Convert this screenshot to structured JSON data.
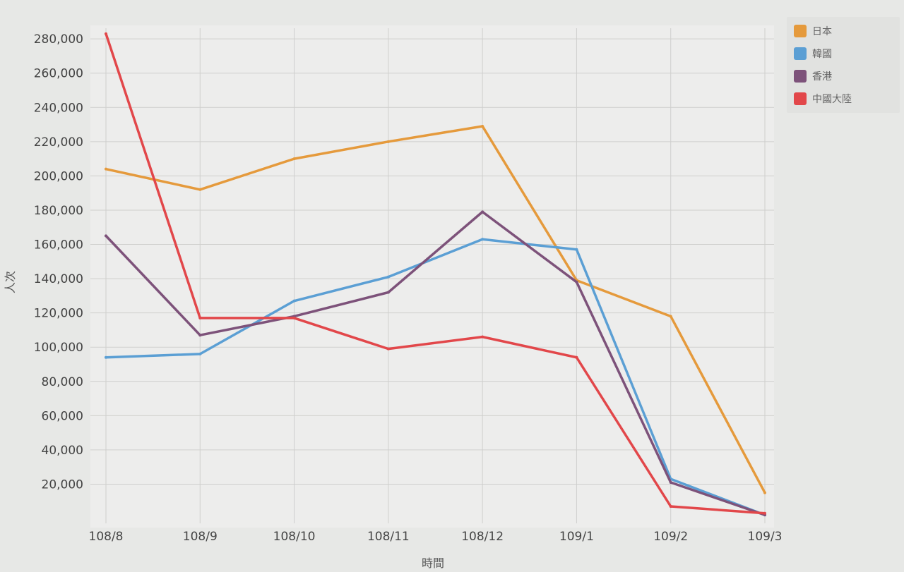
{
  "chart_data": {
    "type": "line",
    "title": "",
    "xlabel": "時間",
    "ylabel": "人次",
    "categories": [
      "108/8",
      "108/9",
      "108/10",
      "108/11",
      "108/12",
      "109/1",
      "109/2",
      "109/3"
    ],
    "y_ticks": [
      "20,000",
      "40,000",
      "60,000",
      "80,000",
      "100,000",
      "120,000",
      "140,000",
      "160,000",
      "180,000",
      "200,000",
      "220,000",
      "240,000",
      "260,000",
      "280,000"
    ],
    "ylim": [
      0,
      285000
    ],
    "grid": true,
    "legend_position": "top-right",
    "series": [
      {
        "name": "日本",
        "color": "#e59a3c",
        "values": [
          204000,
          192000,
          210000,
          220000,
          229000,
          139000,
          118000,
          15000
        ]
      },
      {
        "name": "韓國",
        "color": "#5b9fd4",
        "values": [
          94000,
          96000,
          127000,
          141000,
          163000,
          157000,
          23000,
          2000
        ]
      },
      {
        "name": "香港",
        "color": "#7d527a",
        "values": [
          165000,
          107000,
          118000,
          132000,
          179000,
          138000,
          21000,
          2000
        ]
      },
      {
        "name": "中國大陸",
        "color": "#e2474a",
        "values": [
          283000,
          117000,
          117000,
          99000,
          106000,
          94000,
          7000,
          3000
        ]
      }
    ]
  }
}
